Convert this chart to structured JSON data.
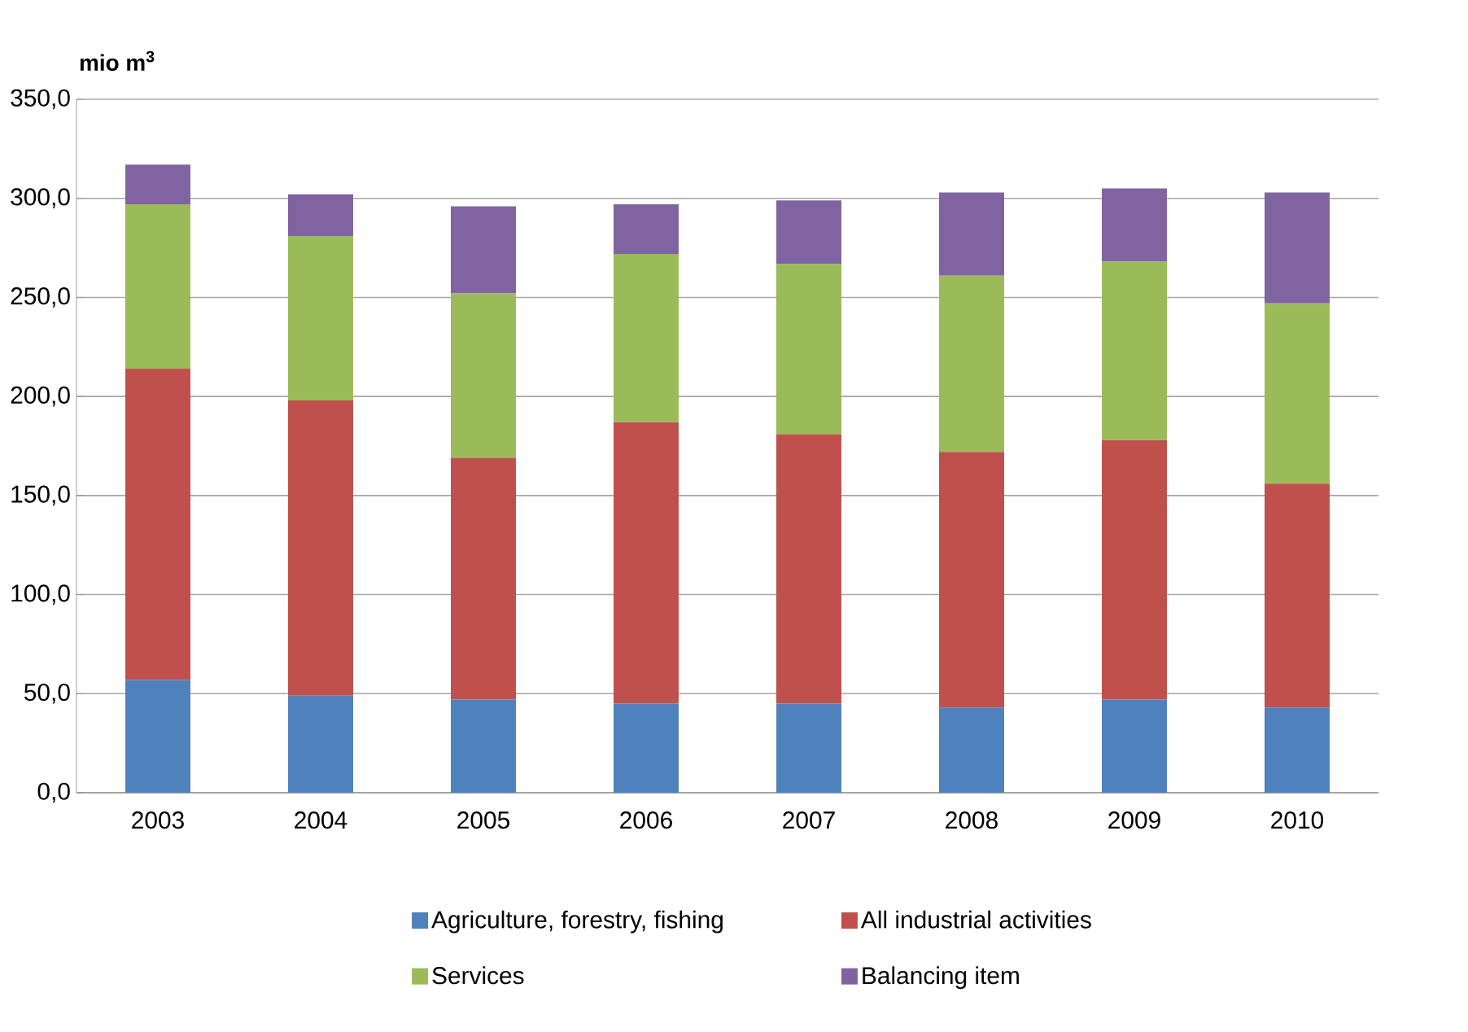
{
  "chart_data": {
    "type": "bar",
    "stacked": true,
    "ylabel": "mio m$^{3}$",
    "categories": [
      "2003",
      "2004",
      "2005",
      "2006",
      "2007",
      "2008",
      "2009",
      "2010"
    ],
    "series": [
      {
        "name": "Agriculture, forestry, fishing",
        "color": "#4f81bd",
        "values": [
          57,
          49,
          47,
          45,
          45,
          43,
          47,
          43
        ]
      },
      {
        "name": "All industrial activities",
        "color": "#c0504d",
        "values": [
          157,
          149,
          122,
          142,
          136,
          129,
          131,
          113
        ]
      },
      {
        "name": "Services",
        "color": "#9bbb59",
        "values": [
          83,
          83,
          83,
          85,
          86,
          89,
          90,
          91
        ]
      },
      {
        "name": "Balancing item",
        "color": "#8064a2",
        "values": [
          20,
          21,
          44,
          25,
          32,
          42,
          37,
          56
        ]
      }
    ],
    "ylim": [
      0,
      350
    ],
    "yticks": [
      {
        "value": 0,
        "label": "0,0"
      },
      {
        "value": 50,
        "label": "50,0"
      },
      {
        "value": 100,
        "label": "100,0"
      },
      {
        "value": 150,
        "label": "150,0"
      },
      {
        "value": 200,
        "label": "200,0"
      },
      {
        "value": 250,
        "label": "250,0"
      },
      {
        "value": 300,
        "label": "300,0"
      },
      {
        "value": 350,
        "label": "350,0"
      }
    ],
    "grid": "y",
    "legend": "bottom"
  }
}
